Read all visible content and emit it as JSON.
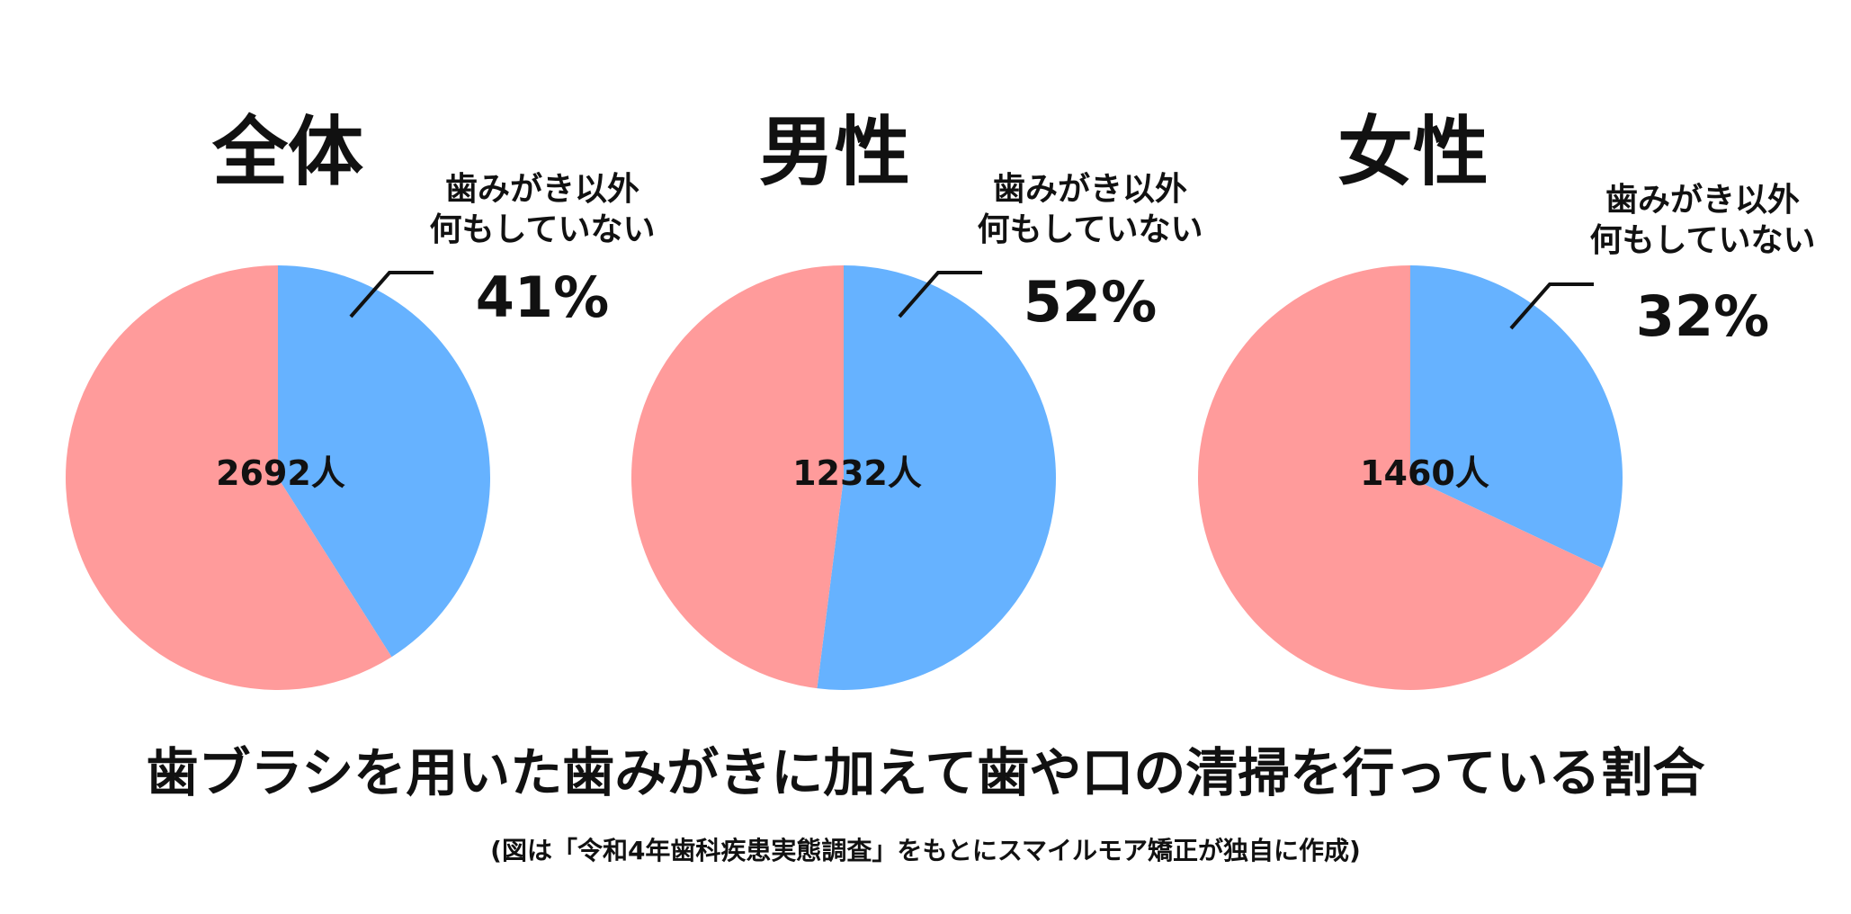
{
  "chart_data": {
    "type": "pie",
    "title": "歯ブラシを用いた歯みがきに加えて歯や口の清掃を行っている割合",
    "source_note": "(図は「令和4年歯科疾患実態調査」をもとにスマイルモア矯正が独自に作成)",
    "colors": {
      "highlight": "#66b2ff",
      "rest": "#ff9b9b"
    },
    "panels": [
      {
        "title": "全体",
        "count_label": "2692人",
        "callout_label_lines": [
          "歯みがき以外",
          "何もしていない"
        ],
        "callout_value": "41%",
        "slices": [
          {
            "value": 41,
            "color": "#66b2ff"
          },
          {
            "value": 59,
            "color": "#ff9b9b"
          }
        ]
      },
      {
        "title": "男性",
        "count_label": "1232人",
        "callout_label_lines": [
          "歯みがき以外",
          "何もしていない"
        ],
        "callout_value": "52%",
        "slices": [
          {
            "value": 52,
            "color": "#66b2ff"
          },
          {
            "value": 48,
            "color": "#ff9b9b"
          }
        ]
      },
      {
        "title": "女性",
        "count_label": "1460人",
        "callout_label_lines": [
          "歯みがき以外",
          "何もしていない"
        ],
        "callout_value": "32%",
        "slices": [
          {
            "value": 32,
            "color": "#66b2ff"
          },
          {
            "value": 68,
            "color": "#ff9b9b"
          }
        ]
      }
    ]
  }
}
